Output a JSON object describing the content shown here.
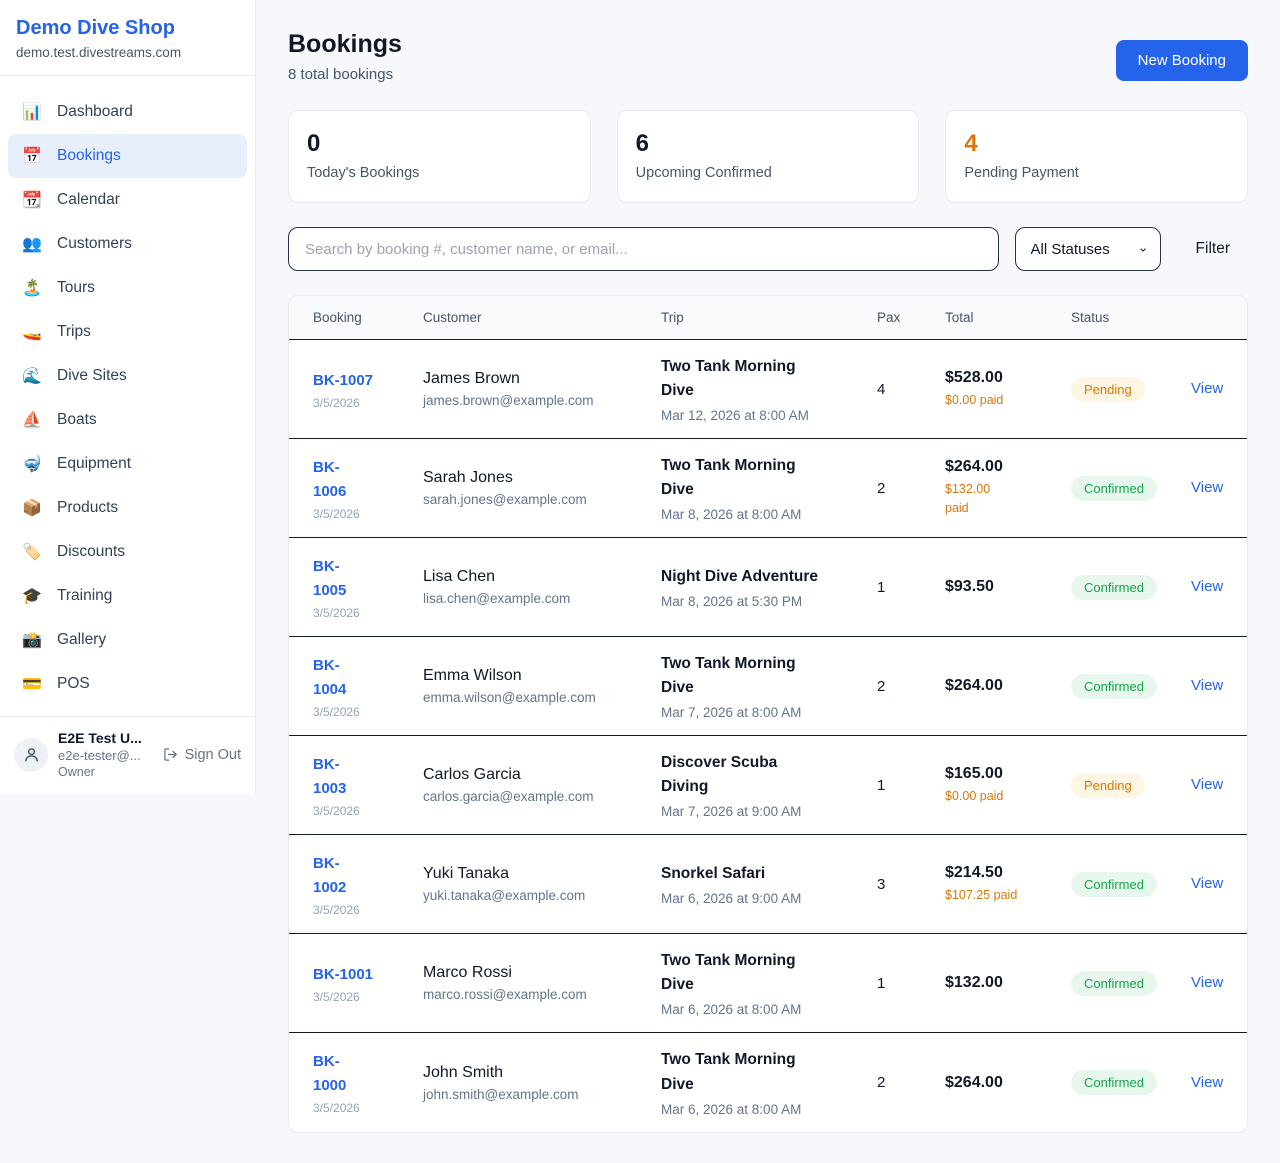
{
  "colors": {
    "accent": "#2563eb",
    "orange": "#d97706",
    "pending_bg": "#fdf6e3",
    "confirmed_text": "#16a34a",
    "confirmed_bg": "#e8f7ee",
    "page_bg": "#f7f8fb"
  },
  "sidebar": {
    "brand": {
      "title": "Demo Dive Shop",
      "domain": "demo.test.divestreams.com"
    },
    "items": [
      {
        "label": "Dashboard",
        "icon_name": "dashboard-icon",
        "glyph": "📊",
        "active": false
      },
      {
        "label": "Bookings",
        "icon_name": "bookings-icon",
        "glyph": "📅",
        "active": true
      },
      {
        "label": "Calendar",
        "icon_name": "calendar-icon",
        "glyph": "📆",
        "active": false
      },
      {
        "label": "Customers",
        "icon_name": "customers-icon",
        "glyph": "👥",
        "active": false
      },
      {
        "label": "Tours",
        "icon_name": "tours-icon",
        "glyph": "🏝️",
        "active": false
      },
      {
        "label": "Trips",
        "icon_name": "trips-icon",
        "glyph": "🚤",
        "active": false
      },
      {
        "label": "Dive Sites",
        "icon_name": "dive-sites-icon",
        "glyph": "🌊",
        "active": false
      },
      {
        "label": "Boats",
        "icon_name": "boats-icon",
        "glyph": "⛵",
        "active": false
      },
      {
        "label": "Equipment",
        "icon_name": "equipment-icon",
        "glyph": "🤿",
        "active": false
      },
      {
        "label": "Products",
        "icon_name": "products-icon",
        "glyph": "📦",
        "active": false
      },
      {
        "label": "Discounts",
        "icon_name": "discounts-icon",
        "glyph": "🏷️",
        "active": false
      },
      {
        "label": "Training",
        "icon_name": "training-icon",
        "glyph": "🎓",
        "active": false
      },
      {
        "label": "Gallery",
        "icon_name": "gallery-icon",
        "glyph": "📸",
        "active": false
      },
      {
        "label": "POS",
        "icon_name": "pos-icon",
        "glyph": "💳",
        "active": false
      }
    ],
    "user": {
      "name": "E2E Test U...",
      "email": "e2e-tester@...",
      "role": "Owner",
      "sign_out_label": "Sign Out"
    }
  },
  "header": {
    "title": "Bookings",
    "subtitle": "8 total bookings",
    "new_booking_label": "New Booking"
  },
  "stats": [
    {
      "value": "0",
      "label": "Today's Bookings",
      "accent": false
    },
    {
      "value": "6",
      "label": "Upcoming Confirmed",
      "accent": false
    },
    {
      "value": "4",
      "label": "Pending Payment",
      "accent": true
    }
  ],
  "controls": {
    "search_placeholder": "Search by booking #, customer name, or email...",
    "status_filter_value": "All Statuses",
    "filter_label": "Filter"
  },
  "table": {
    "columns": [
      "Booking",
      "Customer",
      "Trip",
      "Pax",
      "Total",
      "Status"
    ],
    "rows": [
      {
        "id": "BK-1007",
        "date": "3/5/2026",
        "customer": "James Brown",
        "email": "james.brown@example.com",
        "trip": "Two Tank Morning\nDive",
        "trip_date": "Mar 12, 2026 at 8:00 AM",
        "pax": "4",
        "total": "$528.00",
        "paid": "$0.00 paid",
        "status": "Pending",
        "action": "View"
      },
      {
        "id": "BK-\n1006",
        "date": "3/5/2026",
        "customer": "Sarah Jones",
        "email": "sarah.jones@example.com",
        "trip": "Two Tank Morning\nDive",
        "trip_date": "Mar 8, 2026 at 8:00 AM",
        "pax": "2",
        "total": "$264.00",
        "paid": "$132.00\npaid",
        "status": "Confirmed",
        "action": "View"
      },
      {
        "id": "BK-\n1005",
        "date": "3/5/2026",
        "customer": "Lisa Chen",
        "email": "lisa.chen@example.com",
        "trip": "Night Dive Adventure",
        "trip_date": "Mar 8, 2026 at 5:30 PM",
        "pax": "1",
        "total": "$93.50",
        "paid": null,
        "status": "Confirmed",
        "action": "View"
      },
      {
        "id": "BK-\n1004",
        "date": "3/5/2026",
        "customer": "Emma Wilson",
        "email": "emma.wilson@example.com",
        "trip": "Two Tank Morning\nDive",
        "trip_date": "Mar 7, 2026 at 8:00 AM",
        "pax": "2",
        "total": "$264.00",
        "paid": null,
        "status": "Confirmed",
        "action": "View"
      },
      {
        "id": "BK-\n1003",
        "date": "3/5/2026",
        "customer": "Carlos Garcia",
        "email": "carlos.garcia@example.com",
        "trip": "Discover Scuba\nDiving",
        "trip_date": "Mar 7, 2026 at 9:00 AM",
        "pax": "1",
        "total": "$165.00",
        "paid": "$0.00 paid",
        "status": "Pending",
        "action": "View"
      },
      {
        "id": "BK-\n1002",
        "date": "3/5/2026",
        "customer": "Yuki Tanaka",
        "email": "yuki.tanaka@example.com",
        "trip": "Snorkel Safari",
        "trip_date": "Mar 6, 2026 at 9:00 AM",
        "pax": "3",
        "total": "$214.50",
        "paid": "$107.25 paid",
        "status": "Confirmed",
        "action": "View"
      },
      {
        "id": "BK-1001",
        "date": "3/5/2026",
        "customer": "Marco Rossi",
        "email": "marco.rossi@example.com",
        "trip": "Two Tank Morning\nDive",
        "trip_date": "Mar 6, 2026 at 8:00 AM",
        "pax": "1",
        "total": "$132.00",
        "paid": null,
        "status": "Confirmed",
        "action": "View"
      },
      {
        "id": "BK-\n1000",
        "date": "3/5/2026",
        "customer": "John Smith",
        "email": "john.smith@example.com",
        "trip": "Two Tank Morning\nDive",
        "trip_date": "Mar 6, 2026 at 8:00 AM",
        "pax": "2",
        "total": "$264.00",
        "paid": null,
        "status": "Confirmed",
        "action": "View"
      }
    ]
  }
}
